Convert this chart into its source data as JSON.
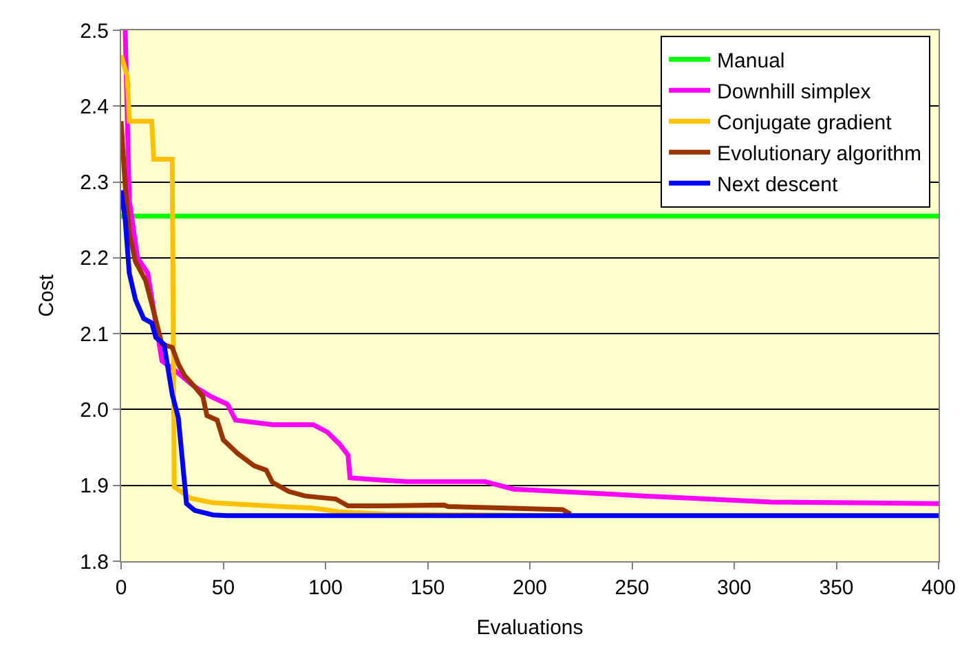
{
  "chart_data": {
    "type": "line",
    "xlabel": "Evaluations",
    "ylabel": "Cost",
    "xlim": [
      0,
      400
    ],
    "ylim": [
      1.8,
      2.5
    ],
    "xticks": [
      0,
      50,
      100,
      150,
      200,
      250,
      300,
      350,
      400
    ],
    "yticks": [
      {
        "value": 1.8,
        "label": "1.8"
      },
      {
        "value": 1.9,
        "label": "1.9"
      },
      {
        "value": 2.0,
        "label": "2.0"
      },
      {
        "value": 2.1,
        "label": "2.1"
      },
      {
        "value": 2.2,
        "label": "2.2"
      },
      {
        "value": 2.3,
        "label": "2.3"
      },
      {
        "value": 2.4,
        "label": "2.4"
      },
      {
        "value": 2.5,
        "label": "2.5"
      }
    ],
    "grid": "y",
    "legend": "top right",
    "marker": "none",
    "line_style": "solid",
    "series": [
      {
        "name": "Manual",
        "color": "#00ff00",
        "x": [
          0,
          400
        ],
        "values": [
          2.255,
          2.255
        ]
      },
      {
        "name": "Downhill simplex",
        "color": "#ff00ff",
        "x": [
          2,
          4,
          8,
          13,
          16,
          20,
          27,
          36,
          44,
          52,
          56,
          74,
          94,
          101,
          107,
          111,
          112,
          127,
          140,
          178,
          192,
          243,
          256,
          318,
          400
        ],
        "values": [
          2.5,
          2.276,
          2.2,
          2.18,
          2.13,
          2.064,
          2.05,
          2.03,
          2.017,
          2.007,
          1.986,
          1.98,
          1.98,
          1.97,
          1.954,
          1.94,
          1.91,
          1.907,
          1.905,
          1.905,
          1.895,
          1.888,
          1.886,
          1.878,
          1.876
        ]
      },
      {
        "name": "Conjugate gradient",
        "color": "#ffc000",
        "x": [
          0,
          3,
          4,
          15,
          16,
          25,
          26,
          34,
          45,
          72,
          94,
          107,
          130,
          220
        ],
        "values": [
          2.467,
          2.44,
          2.38,
          2.38,
          2.33,
          2.33,
          1.898,
          1.883,
          1.877,
          1.873,
          1.87,
          1.865,
          1.862,
          1.86
        ]
      },
      {
        "name": "Evolutionary algorithm",
        "color": "#993300",
        "x": [
          0,
          2,
          4,
          7,
          12,
          15,
          20,
          25,
          28,
          31,
          36,
          40,
          42,
          47,
          50,
          57,
          65,
          71,
          74,
          82,
          90,
          105,
          111,
          127,
          158,
          160,
          216,
          220
        ],
        "values": [
          2.38,
          2.295,
          2.232,
          2.195,
          2.17,
          2.139,
          2.086,
          2.082,
          2.06,
          2.045,
          2.03,
          2.017,
          1.992,
          1.986,
          1.96,
          1.942,
          1.926,
          1.92,
          1.904,
          1.892,
          1.886,
          1.882,
          1.873,
          1.873,
          1.874,
          1.872,
          1.868,
          1.862
        ]
      },
      {
        "name": "Next descent",
        "color": "#0000ff",
        "x": [
          0,
          2,
          4,
          7,
          11,
          15,
          17,
          21,
          25,
          28,
          32,
          36,
          45,
          52,
          400
        ],
        "values": [
          2.289,
          2.25,
          2.18,
          2.145,
          2.12,
          2.114,
          2.095,
          2.086,
          2.02,
          1.989,
          1.876,
          1.867,
          1.861,
          1.86,
          1.86
        ]
      }
    ]
  }
}
